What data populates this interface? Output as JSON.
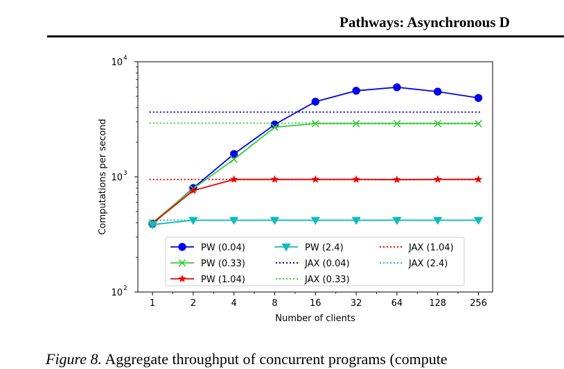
{
  "header": {
    "running_title": "Pathways: Asynchronous D"
  },
  "caption": {
    "figure_label": "Figure 8.",
    "text": " Aggregate throughput of concurrent programs (compute"
  },
  "chart_data": {
    "type": "line",
    "title": "",
    "xlabel": "Number of clients",
    "ylabel": "Computations per second",
    "xscale": "log2",
    "yscale": "log10",
    "x": [
      1,
      2,
      4,
      8,
      16,
      32,
      64,
      128,
      256
    ],
    "xticklabels": [
      "1",
      "2",
      "4",
      "8",
      "16",
      "32",
      "64",
      "128",
      "256"
    ],
    "ylim": [
      100,
      10000
    ],
    "yticks": [
      {
        "value": 100,
        "base": "10",
        "exp": "2"
      },
      {
        "value": 1000,
        "base": "10",
        "exp": "3"
      },
      {
        "value": 10000,
        "base": "10",
        "exp": "4"
      }
    ],
    "grid": false,
    "legend_position": "lower-center",
    "series": [
      {
        "name": "PW (0.04)",
        "color": "#0000ee",
        "marker": "circle",
        "values": [
          390,
          800,
          1580,
          2850,
          4500,
          5600,
          6000,
          5500,
          4850
        ]
      },
      {
        "name": "PW (0.33)",
        "color": "#33cc33",
        "marker": "x",
        "values": [
          400,
          790,
          1420,
          2700,
          2900,
          2900,
          2900,
          2900,
          2900
        ]
      },
      {
        "name": "PW (1.04)",
        "color": "#ee0000",
        "marker": "star",
        "values": [
          395,
          760,
          950,
          950,
          950,
          950,
          945,
          950,
          950
        ]
      },
      {
        "name": "PW (2.4)",
        "color": "#11bbbb",
        "marker": "triangle-down",
        "values": [
          385,
          420,
          420,
          420,
          420,
          420,
          420,
          420,
          420
        ]
      }
    ],
    "reference_lines": [
      {
        "name": "JAX (0.04)",
        "color": "#0000cc",
        "value": 3650
      },
      {
        "name": "JAX (0.33)",
        "color": "#33cc33",
        "value": 2930
      },
      {
        "name": "JAX (1.04)",
        "color": "#ee0000",
        "value": 950
      },
      {
        "name": "JAX (2.4)",
        "color": "#11bbbb",
        "value": 420
      }
    ]
  }
}
